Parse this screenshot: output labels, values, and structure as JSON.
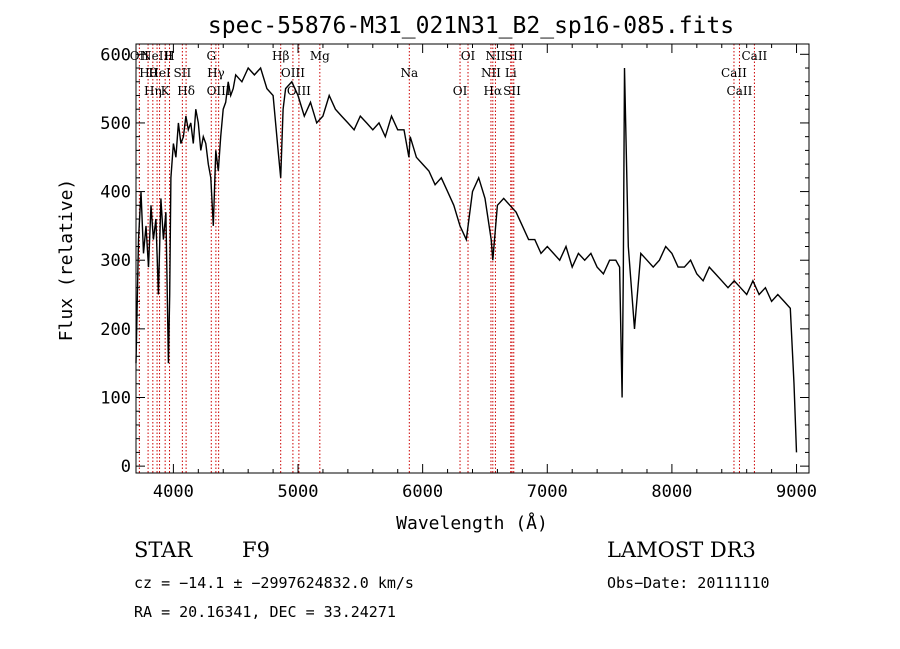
{
  "chart_data": {
    "type": "line",
    "title": "spec-55876-M31_021N31_B2_sp16-085.fits",
    "xlabel": "Wavelength (Å)",
    "ylabel": "Flux (relative)",
    "xlim": [
      3700,
      9100
    ],
    "ylim": [
      -10,
      615
    ],
    "xticks": [
      4000,
      5000,
      6000,
      7000,
      8000,
      9000
    ],
    "yticks": [
      0,
      100,
      200,
      300,
      400,
      500,
      600
    ],
    "series": [
      {
        "name": "flux",
        "x": [
          3700,
          3720,
          3740,
          3760,
          3780,
          3800,
          3820,
          3840,
          3860,
          3880,
          3900,
          3920,
          3940,
          3960,
          3970,
          3980,
          4000,
          4020,
          4040,
          4060,
          4080,
          4100,
          4120,
          4140,
          4160,
          4180,
          4200,
          4220,
          4240,
          4260,
          4280,
          4300,
          4320,
          4340,
          4360,
          4380,
          4400,
          4420,
          4440,
          4460,
          4480,
          4500,
          4550,
          4600,
          4650,
          4700,
          4750,
          4800,
          4840,
          4861,
          4880,
          4900,
          4950,
          5000,
          5050,
          5100,
          5150,
          5200,
          5250,
          5300,
          5350,
          5400,
          5450,
          5500,
          5550,
          5600,
          5650,
          5700,
          5750,
          5800,
          5850,
          5890,
          5900,
          5950,
          6000,
          6050,
          6100,
          6150,
          6200,
          6250,
          6300,
          6350,
          6400,
          6450,
          6500,
          6550,
          6563,
          6600,
          6650,
          6700,
          6750,
          6800,
          6850,
          6900,
          6950,
          7000,
          7050,
          7100,
          7150,
          7200,
          7250,
          7300,
          7350,
          7400,
          7450,
          7500,
          7550,
          7580,
          7600,
          7610,
          7620,
          7650,
          7700,
          7750,
          7800,
          7850,
          7900,
          7950,
          8000,
          8050,
          8100,
          8150,
          8200,
          8250,
          8300,
          8350,
          8400,
          8450,
          8500,
          8550,
          8600,
          8650,
          8700,
          8750,
          8800,
          8850,
          8900,
          8950,
          8980,
          9000
        ],
        "values": [
          150,
          330,
          400,
          310,
          350,
          290,
          380,
          330,
          360,
          250,
          390,
          330,
          370,
          150,
          250,
          420,
          470,
          450,
          500,
          470,
          480,
          510,
          490,
          500,
          470,
          520,
          500,
          460,
          480,
          470,
          440,
          420,
          350,
          460,
          430,
          480,
          520,
          530,
          560,
          540,
          550,
          570,
          560,
          580,
          570,
          580,
          550,
          540,
          460,
          420,
          520,
          550,
          560,
          540,
          510,
          530,
          500,
          510,
          540,
          520,
          510,
          500,
          490,
          510,
          500,
          490,
          500,
          480,
          510,
          490,
          490,
          450,
          480,
          450,
          440,
          430,
          410,
          420,
          400,
          380,
          350,
          330,
          400,
          420,
          390,
          330,
          300,
          380,
          390,
          380,
          370,
          350,
          330,
          330,
          310,
          320,
          310,
          300,
          320,
          290,
          310,
          300,
          310,
          290,
          280,
          300,
          300,
          290,
          100,
          280,
          580,
          320,
          200,
          310,
          300,
          290,
          300,
          320,
          310,
          290,
          290,
          300,
          280,
          270,
          290,
          280,
          270,
          260,
          270,
          260,
          250,
          270,
          250,
          260,
          240,
          250,
          240,
          230,
          120,
          20
        ]
      }
    ],
    "line_markers": [
      {
        "wavelength": 3727,
        "labels": [
          "OII"
        ]
      },
      {
        "wavelength": 3797,
        "labels": [
          "Hθ"
        ]
      },
      {
        "wavelength": 3835,
        "labels": [
          "Hη"
        ]
      },
      {
        "wavelength": 3869,
        "labels": [
          "NeIII"
        ]
      },
      {
        "wavelength": 3889,
        "labels": [
          "HeI"
        ]
      },
      {
        "wavelength": 3934,
        "labels": [
          "K"
        ]
      },
      {
        "wavelength": 3969,
        "labels": [
          "H"
        ]
      },
      {
        "wavelength": 4072,
        "labels": [
          "SII"
        ]
      },
      {
        "wavelength": 4102,
        "labels": [
          "Hδ"
        ]
      },
      {
        "wavelength": 4304,
        "labels": [
          "G"
        ]
      },
      {
        "wavelength": 4341,
        "labels": [
          "Hγ"
        ]
      },
      {
        "wavelength": 4363,
        "labels": [
          "OIII"
        ]
      },
      {
        "wavelength": 4861,
        "labels": [
          "Hβ"
        ]
      },
      {
        "wavelength": 4959,
        "labels": [
          "OIII"
        ]
      },
      {
        "wavelength": 5007,
        "labels": [
          "OIII"
        ]
      },
      {
        "wavelength": 5175,
        "labels": [
          "Mg"
        ]
      },
      {
        "wavelength": 5893,
        "labels": [
          "Na"
        ]
      },
      {
        "wavelength": 6300,
        "labels": [
          "OI"
        ]
      },
      {
        "wavelength": 6364,
        "labels": [
          "OI"
        ]
      },
      {
        "wavelength": 6548,
        "labels": [
          "NII"
        ]
      },
      {
        "wavelength": 6563,
        "labels": [
          "Hα"
        ]
      },
      {
        "wavelength": 6584,
        "labels": [
          "NII"
        ]
      },
      {
        "wavelength": 6707,
        "labels": [
          "Li"
        ]
      },
      {
        "wavelength": 6717,
        "labels": [
          "SII"
        ]
      },
      {
        "wavelength": 6731,
        "labels": [
          "SII"
        ]
      },
      {
        "wavelength": 8498,
        "labels": [
          "CaII"
        ]
      },
      {
        "wavelength": 8542,
        "labels": [
          "CaII"
        ]
      },
      {
        "wavelength": 8662,
        "labels": [
          "CaII"
        ]
      }
    ]
  },
  "info": {
    "object_class": "STAR",
    "subclass": "F9",
    "survey": "LAMOST DR3",
    "velocity": "cz = −14.1 ± −2997624832.0 km/s",
    "obs_date": "Obs−Date: 20111110",
    "coords": "RA =  20.16341, DEC =  33.24271"
  },
  "colors": {
    "marker_line": "#cc0000",
    "spectrum": "#000000"
  }
}
